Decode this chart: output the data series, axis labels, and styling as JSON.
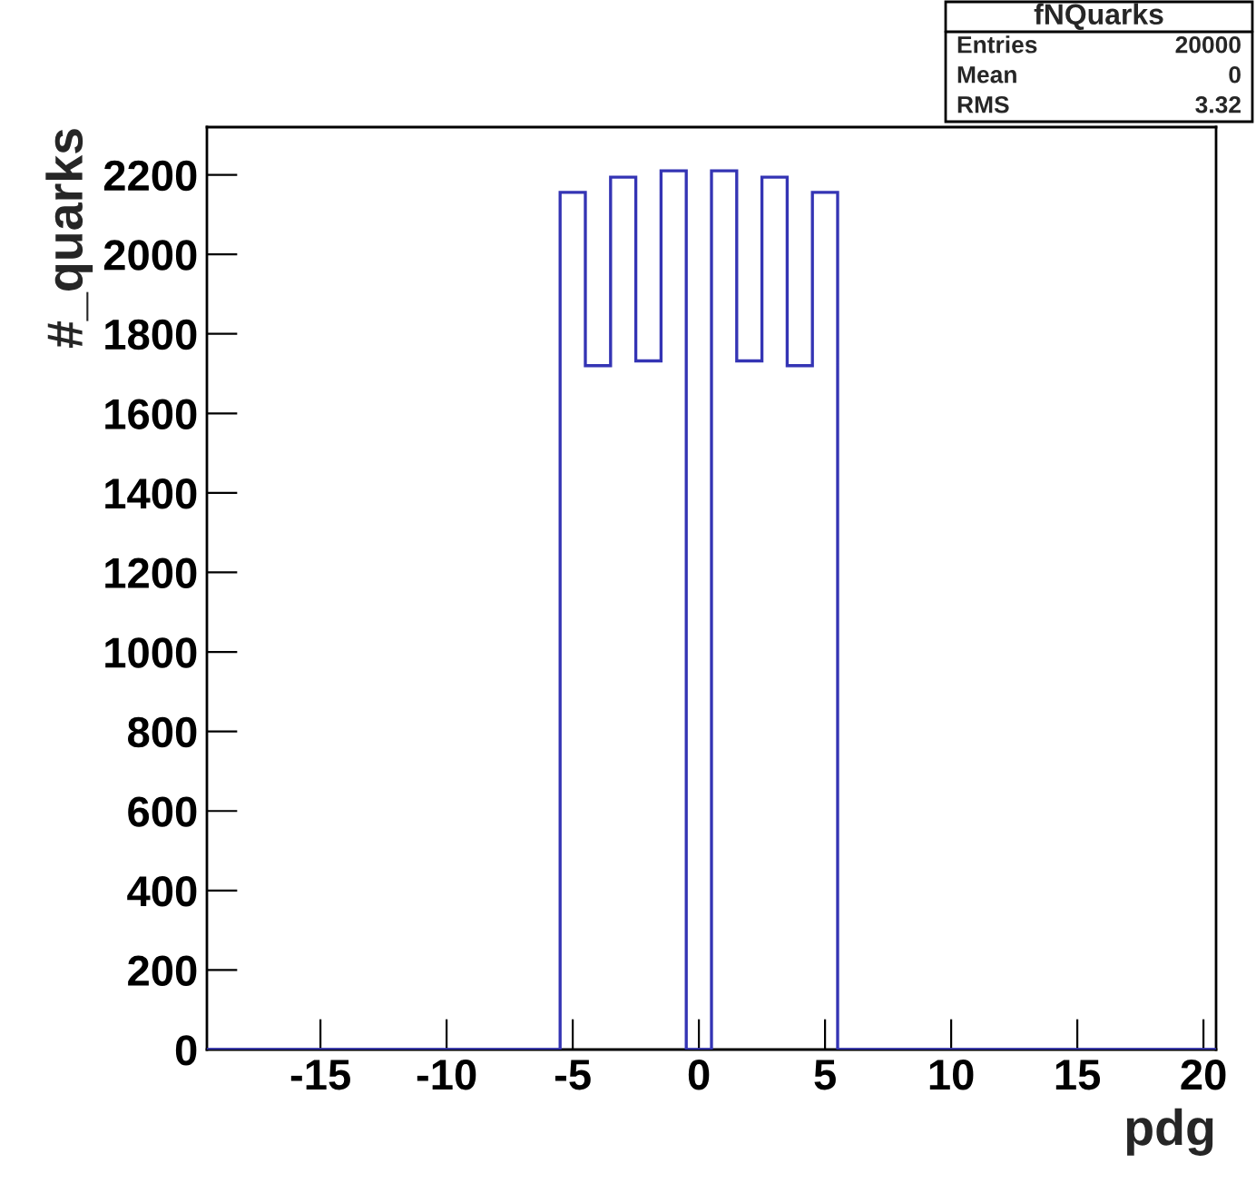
{
  "chart_data": {
    "type": "histogram",
    "title": "fNQuarks",
    "xlabel": "pdg",
    "ylabel": "#_quarks",
    "bins": [
      -19.5,
      -18.5,
      -17.5,
      -16.5,
      -15.5,
      -14.5,
      -13.5,
      -12.5,
      -11.5,
      -10.5,
      -9.5,
      -8.5,
      -7.5,
      -6.5,
      -5.5,
      -4.5,
      -3.5,
      -2.5,
      -1.5,
      -0.5,
      0.5,
      1.5,
      2.5,
      3.5,
      4.5,
      5.5,
      6.5,
      7.5,
      8.5,
      9.5,
      10.5,
      11.5,
      12.5,
      13.5,
      14.5,
      15.5,
      16.5,
      17.5,
      18.5,
      19.5,
      20.5
    ],
    "values": [
      0,
      0,
      0,
      0,
      0,
      0,
      0,
      0,
      0,
      0,
      0,
      0,
      0,
      0,
      2156,
      1720,
      2194,
      1732,
      2210,
      0,
      2210,
      1732,
      2194,
      1720,
      2156,
      0,
      0,
      0,
      0,
      0,
      0,
      0,
      0,
      0,
      0,
      0,
      0,
      0,
      0,
      0
    ],
    "color": "#3434b4",
    "xlim": [
      -19.5,
      20.5
    ],
    "xticks": [
      -15,
      -10,
      -5,
      0,
      5,
      10,
      15,
      20
    ],
    "ylim": [
      0,
      2320
    ],
    "yticks": [
      0,
      200,
      400,
      600,
      800,
      1000,
      1200,
      1400,
      1600,
      1800,
      2000,
      2200
    ],
    "grid": false,
    "annotations": [
      "Entries",
      "20000",
      "Mean",
      "0",
      "RMS",
      "3.32"
    ]
  }
}
